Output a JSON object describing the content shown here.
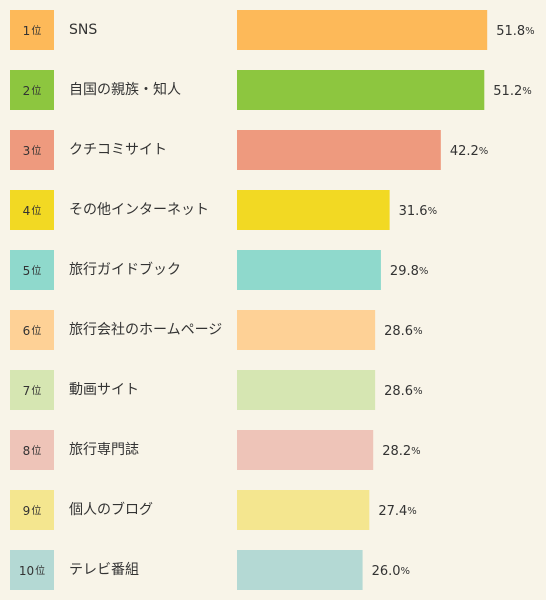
{
  "chart_data": {
    "type": "bar",
    "ranks": [
      1,
      2,
      3,
      4,
      5,
      6,
      7,
      8,
      9,
      10
    ],
    "rank_suffix": "位",
    "categories": [
      "SNS",
      "自国の親族・知人",
      "クチコミサイト",
      "その他インターネット",
      "旅行ガイドブック",
      "旅行会社のホームページ",
      "動画サイト",
      "旅行専門誌",
      "個人のブログ",
      "テレビ番組"
    ],
    "values": [
      51.8,
      51.2,
      42.2,
      31.6,
      29.8,
      28.6,
      28.6,
      28.2,
      27.4,
      26.0
    ],
    "value_labels": [
      "51.8",
      "51.2",
      "42.2",
      "31.6",
      "29.8",
      "28.6",
      "28.6",
      "28.2",
      "27.4",
      "26.0"
    ],
    "unit": "%",
    "colors": [
      "#fdb959",
      "#8dc63f",
      "#ee9a7e",
      "#f2d923",
      "#8fd9cc",
      "#fed196",
      "#d6e6b2",
      "#eec4b8",
      "#f4e68f",
      "#b4d9d4"
    ]
  }
}
